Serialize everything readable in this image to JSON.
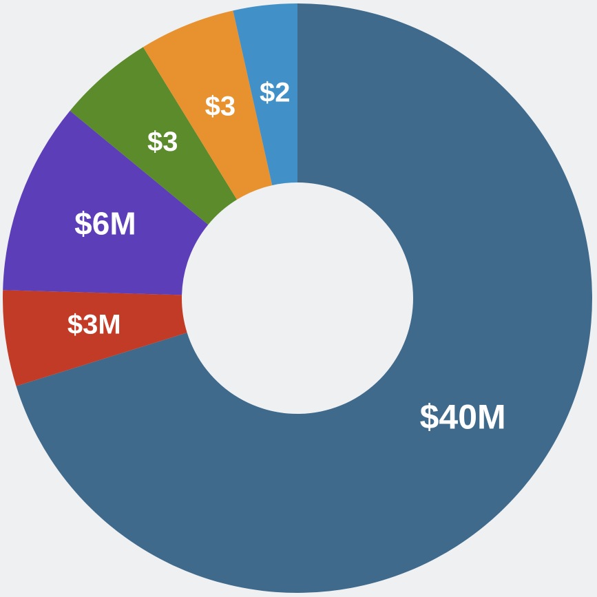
{
  "chart_data": {
    "type": "donut",
    "values": [
      40,
      3,
      6,
      3,
      3,
      2
    ],
    "value_labels": [
      "$40M",
      "$3M",
      "$6M",
      "$3",
      "$3",
      "$2"
    ],
    "colors": [
      "#3f6a8c",
      "#c23b26",
      "#5b3eb8",
      "#5b8b2b",
      "#e8912f",
      "#4190c8"
    ]
  }
}
